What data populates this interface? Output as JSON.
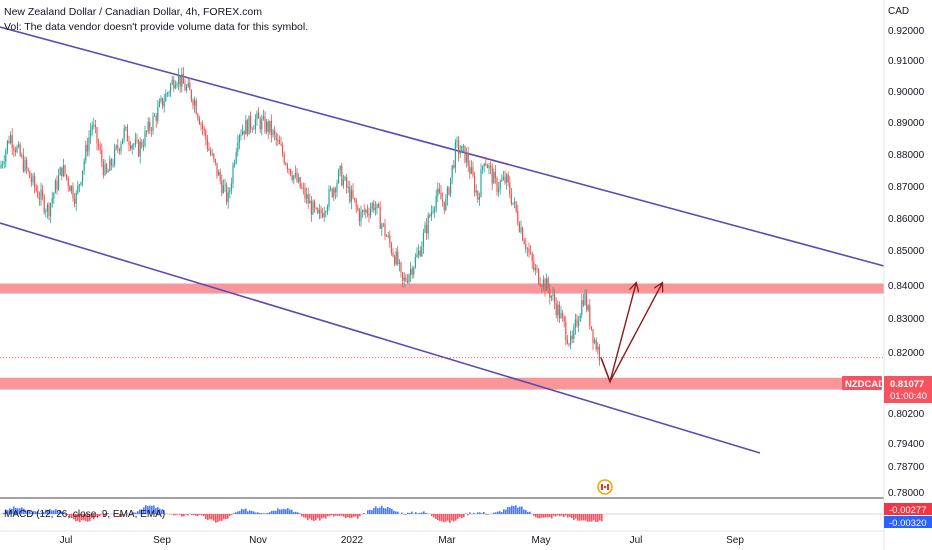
{
  "header": {
    "title": "New Zealand Dollar / Canadian Dollar, 4h, FOREX.com",
    "volume_note": "Vol: The data vendor doesn't provide volume data for this symbol."
  },
  "price_axis": {
    "currency_label": "CAD",
    "ticks": [
      "0.92000",
      "0.91000",
      "0.90000",
      "0.89000",
      "0.88000",
      "0.87000",
      "0.86000",
      "0.85000",
      "0.84000",
      "0.83000",
      "0.82000",
      "0.80200",
      "0.79400",
      "0.78700",
      "0.78000"
    ]
  },
  "last_price": {
    "symbol": "NZDCAD",
    "value": "0.81077",
    "countdown": "01:00:40"
  },
  "macd": {
    "label": "MACD (12, 26, close, 9, EMA, EMA)",
    "value_1": "-0.00277",
    "value_2": "-0.00320"
  },
  "time_axis": {
    "labels": [
      "Jul",
      "Sep",
      "Nov",
      "2022",
      "Mar",
      "May",
      "Jul",
      "Sep"
    ]
  },
  "colors": {
    "up": "#26a69a",
    "down": "#ef5350",
    "channel": "#5b4bb5",
    "zone": "#f77c80",
    "arrow": "#8b1a1a",
    "macd_up": "#2962ff",
    "macd_down": "#f23645"
  },
  "chart_data": {
    "type": "candlestick",
    "symbol": "NZDCAD",
    "timeframe": "4h",
    "path": [
      [
        "Jun 2021",
        0.874
      ],
      [
        "late Jun 2021",
        0.885
      ],
      [
        "Jul 2021",
        0.868
      ],
      [
        "mid Jul 2021",
        0.86
      ],
      [
        "late Jul 2021",
        0.874
      ],
      [
        "Aug 2021",
        0.864
      ],
      [
        "mid Aug 2021",
        0.889
      ],
      [
        "late Aug 2021",
        0.871
      ],
      [
        "early Sep 2021",
        0.886
      ],
      [
        "Sep 2021",
        0.88
      ],
      [
        "mid Sep 2021",
        0.893
      ],
      [
        "late Sep 2021",
        0.905
      ],
      [
        "early Oct 2021",
        0.897
      ],
      [
        "Oct 2021",
        0.879
      ],
      [
        "mid Oct 2021",
        0.863
      ],
      [
        "late Oct 2021",
        0.886
      ],
      [
        "early Nov 2021",
        0.89
      ],
      [
        "Nov 2021",
        0.887
      ],
      [
        "mid Nov 2021",
        0.87
      ],
      [
        "late Nov 2021",
        0.857
      ],
      [
        "early Dec 2021",
        0.872
      ],
      [
        "Dec 2021",
        0.858
      ],
      [
        "mid Dec 2021",
        0.862
      ],
      [
        "late Dec 2021",
        0.85
      ],
      [
        "early Jan 2022",
        0.842
      ],
      [
        "Jan 2022",
        0.835
      ],
      [
        "mid Jan 2022",
        0.845
      ],
      [
        "late Jan 2022",
        0.865
      ],
      [
        "early Feb 2022",
        0.862
      ],
      [
        "Feb 2022",
        0.881
      ],
      [
        "mid Feb 2022",
        0.878
      ],
      [
        "late Feb 2022",
        0.864
      ],
      [
        "early Mar 2022",
        0.878
      ],
      [
        "Mar 2022",
        0.868
      ],
      [
        "mid Mar 2022",
        0.87
      ],
      [
        "late Mar 2022",
        0.855
      ],
      [
        "early Apr 2022",
        0.84
      ],
      [
        "Apr 2022",
        0.834
      ],
      [
        "mid Apr 2022",
        0.825
      ],
      [
        "late Apr 2022",
        0.814
      ],
      [
        "early May 2022",
        0.805
      ],
      [
        "May 2022",
        0.822
      ],
      [
        "mid May 2022",
        0.832
      ],
      [
        "late May 2022",
        0.817
      ],
      [
        "early Jun 2022",
        0.8108
      ]
    ],
    "channel": {
      "upper": [
        [
          "Jun 2021",
          0.922
        ],
        [
          "Oct 2022",
          0.845
        ]
      ],
      "lower": [
        [
          "Jun 2021",
          0.859
        ],
        [
          "Sep 2022",
          0.789
        ]
      ]
    },
    "zones": [
      {
        "from": 0.8338,
        "to": 0.8355
      },
      {
        "from": 0.8018,
        "to": 0.8041
      }
    ],
    "projection": [
      {
        "points": [
          [
            "Jun 2022",
            0.8108
          ],
          [
            "mid Jun 2022",
            0.8028
          ],
          [
            "late Jun 2022",
            0.8355
          ]
        ]
      },
      {
        "points": [
          [
            "Jun 2022",
            0.8108
          ],
          [
            "mid Jun 2022",
            0.8028
          ],
          [
            "Jul 2022",
            0.8355
          ]
        ]
      }
    ],
    "last_price": 0.81077,
    "yaxis_label": "CAD",
    "macd": {
      "fast": 12,
      "slow": 26,
      "source": "close",
      "signal": 9,
      "values": [
        -0.00277,
        -0.0032
      ]
    }
  }
}
